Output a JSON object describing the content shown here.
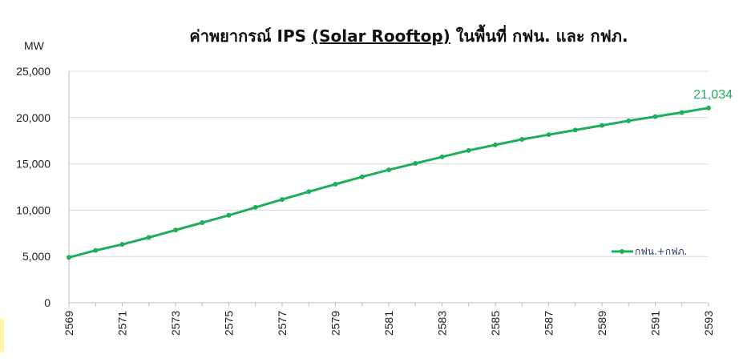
{
  "chart_data": {
    "type": "line",
    "title_parts": [
      "ค่าพยากรณ์ IPS ",
      "(Solar Rooftop)",
      " ในพื้นที่ กฟน. และ กฟภ."
    ],
    "ylabel": "MW",
    "xlabel": "",
    "ylim": [
      0,
      25000
    ],
    "yticks": [
      "0",
      "5,000",
      "10,000",
      "15,000",
      "20,000",
      "25,000"
    ],
    "ytick_values": [
      0,
      5000,
      10000,
      15000,
      20000,
      25000
    ],
    "xlim": [
      2569,
      2593
    ],
    "xtick_labels": [
      "2569",
      "2571",
      "2573",
      "2575",
      "2577",
      "2579",
      "2581",
      "2583",
      "2585",
      "2587",
      "2589",
      "2591",
      "2593"
    ],
    "grid": "horizontal",
    "legend_position": "right",
    "series": [
      {
        "name": "กฟน.+กฟภ.",
        "color": "#1fae5b",
        "x": [
          2569,
          2570,
          2571,
          2572,
          2573,
          2574,
          2575,
          2576,
          2577,
          2578,
          2579,
          2580,
          2581,
          2582,
          2583,
          2584,
          2585,
          2586,
          2587,
          2588,
          2589,
          2590,
          2591,
          2592,
          2593
        ],
        "y": [
          4900,
          5650,
          6300,
          7050,
          7850,
          8650,
          9450,
          10300,
          11150,
          12000,
          12800,
          13600,
          14350,
          15050,
          15750,
          16450,
          17050,
          17650,
          18150,
          18650,
          19150,
          19650,
          20100,
          20550,
          21034
        ],
        "end_label": "21,034"
      }
    ]
  }
}
